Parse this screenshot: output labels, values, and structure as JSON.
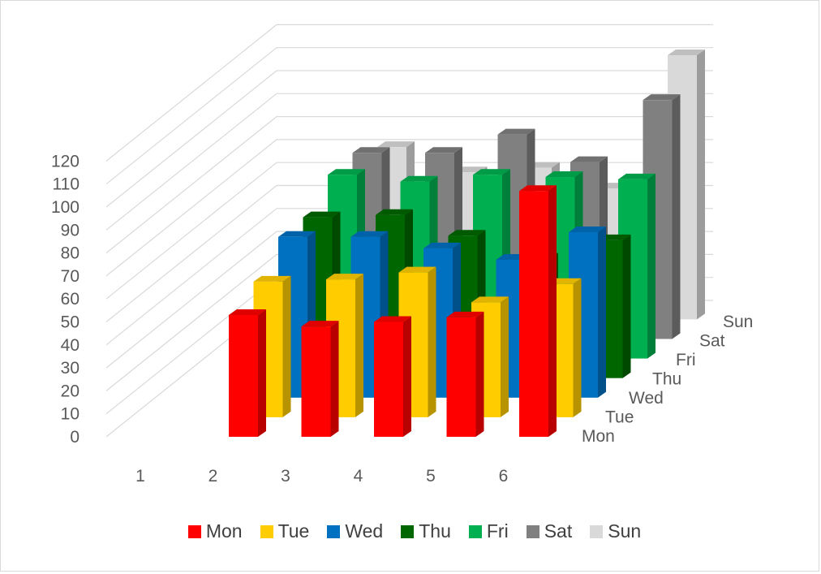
{
  "chart_data": {
    "type": "bar",
    "subtype": "3d-column",
    "categories": [
      "1",
      "2",
      "3",
      "4",
      "5",
      "6"
    ],
    "depth_labels": [
      "Mon",
      "Tue",
      "Wed",
      "Thu",
      "Fri",
      "Sat",
      "Sun"
    ],
    "series": [
      {
        "name": "Mon",
        "color": "#ff0000",
        "values": [
          null,
          53,
          48,
          50,
          52,
          107
        ]
      },
      {
        "name": "Tue",
        "color": "#ffcc00",
        "values": [
          null,
          59,
          60,
          63,
          50,
          58
        ]
      },
      {
        "name": "Wed",
        "color": "#0070c0",
        "values": [
          null,
          70,
          70,
          65,
          60,
          72
        ]
      },
      {
        "name": "Thu",
        "color": "#006600",
        "values": [
          null,
          70,
          71,
          62,
          52,
          60
        ]
      },
      {
        "name": "Fri",
        "color": "#00b050",
        "values": [
          null,
          80,
          77,
          80,
          79,
          78
        ]
      },
      {
        "name": "Sat",
        "color": "#808080",
        "values": [
          null,
          81,
          81,
          89,
          77,
          104
        ]
      },
      {
        "name": "Sun",
        "color": "#d9d9d9",
        "values": [
          null,
          75,
          64,
          66,
          57,
          115
        ]
      }
    ],
    "ylim": [
      0,
      120
    ],
    "yticks": [
      "0",
      "10",
      "20",
      "30",
      "40",
      "50",
      "60",
      "70",
      "80",
      "90",
      "100",
      "110",
      "120"
    ],
    "title": "",
    "xlabel": "",
    "ylabel": "",
    "grid": true,
    "legend_position": "bottom"
  }
}
